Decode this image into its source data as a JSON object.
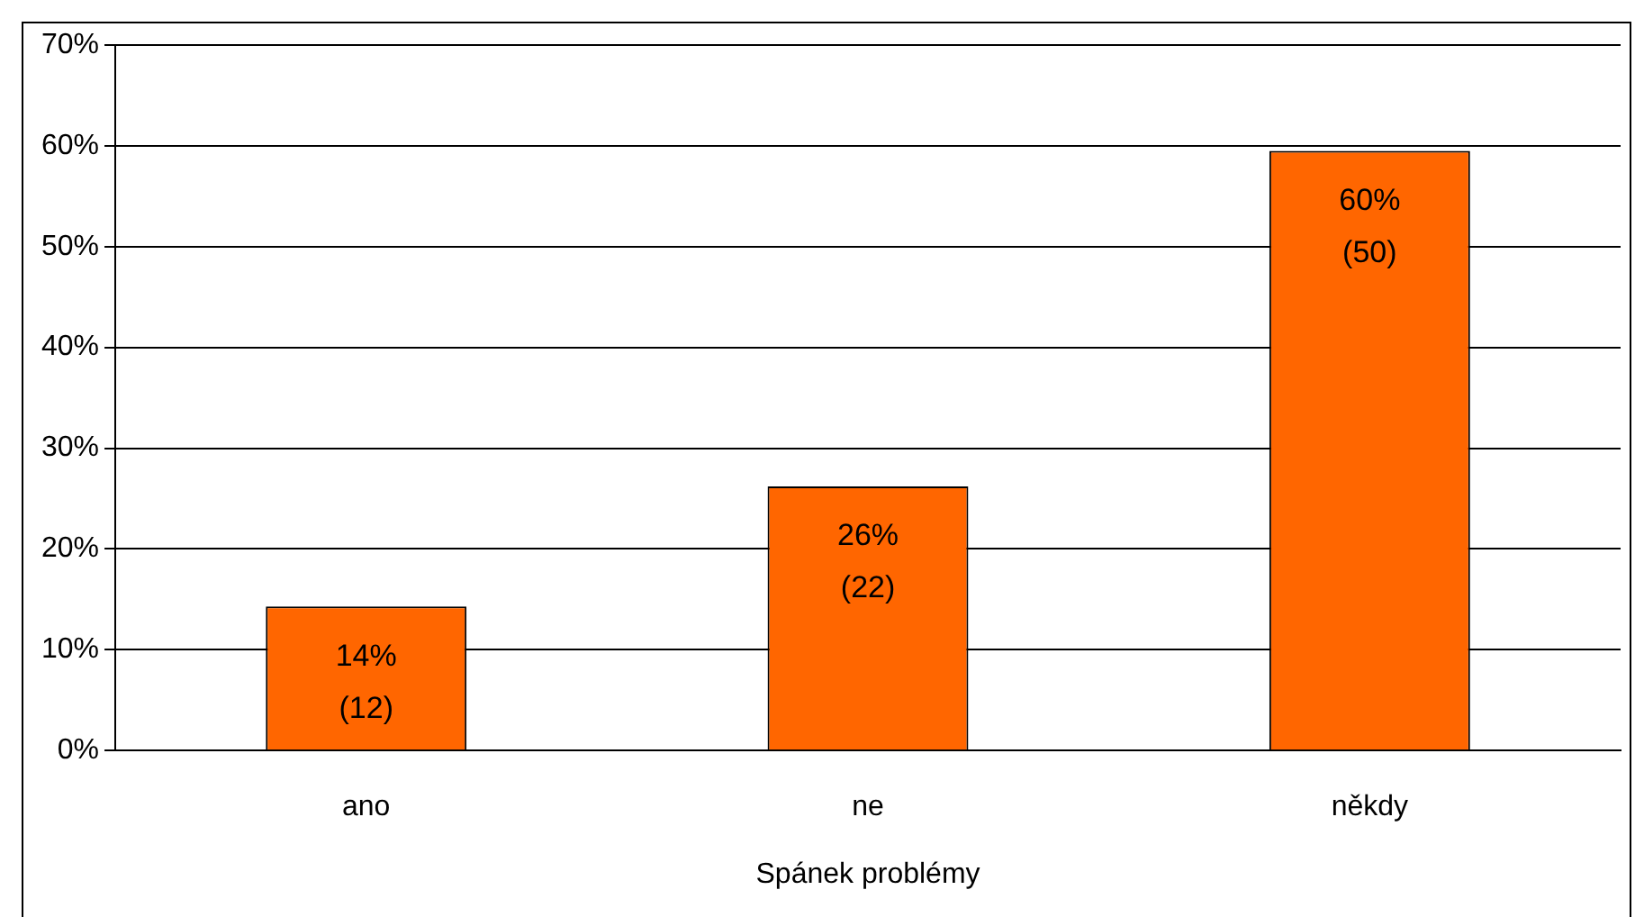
{
  "chart_data": {
    "type": "bar",
    "xlabel": "Spánek problémy",
    "categories": [
      "ano",
      "ne",
      "někdy"
    ],
    "values": [
      14.3,
      26.2,
      59.5
    ],
    "color": "#ff6600",
    "value_labels": [
      "14%\n(12)",
      "26%\n(22)",
      "60%\n(50)"
    ],
    "ylim": [
      0,
      70
    ],
    "yticks": [
      {
        "value": 0,
        "label": "0%"
      },
      {
        "value": 10,
        "label": "10%"
      },
      {
        "value": 20,
        "label": "20%"
      },
      {
        "value": 30,
        "label": "30%"
      },
      {
        "value": 40,
        "label": "40%"
      },
      {
        "value": 50,
        "label": "50%"
      },
      {
        "value": 60,
        "label": "60%"
      },
      {
        "value": 70,
        "label": "70%"
      }
    ],
    "grid": "y",
    "legend": false
  }
}
